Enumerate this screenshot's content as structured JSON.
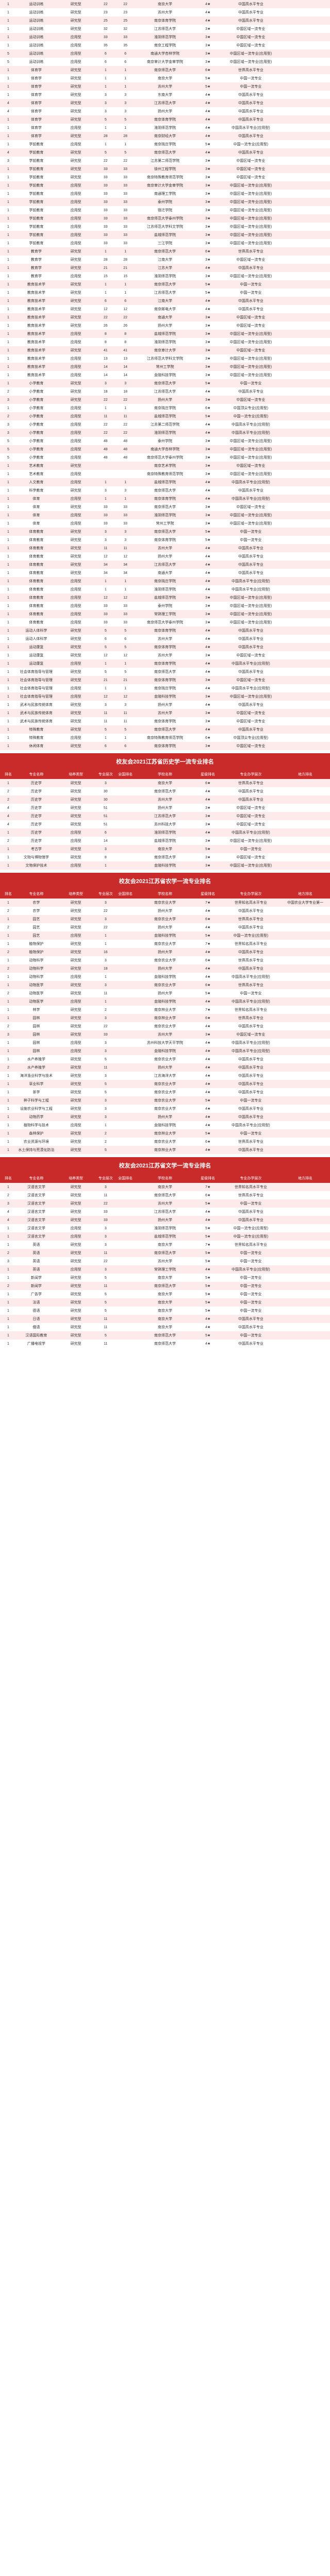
{
  "columns": [
    "排名",
    "专业名称",
    "培养类型",
    "专业层次",
    "全国排名",
    "学校名称",
    "星级排名",
    "专业办学层次",
    "地方排名"
  ],
  "section_titles": [
    "校友会2021江苏省历史学一流专业排名",
    "校友会2021江苏省农学一流专业排名",
    "校友会2021江苏省文学一流专业排名"
  ],
  "table1": [
    [
      1,
      "运动训练",
      "研究型",
      22,
      22,
      "南京大学",
      "4★",
      "中国高水平专业",
      ""
    ],
    [
      1,
      "运动训练",
      "研究型",
      23,
      23,
      "苏州大学",
      "4★",
      "中国高水平专业",
      ""
    ],
    [
      1,
      "运动训练",
      "研究型",
      25,
      25,
      "南京体育学院",
      "4★",
      "中国高水平专业",
      ""
    ],
    [
      1,
      "运动训练",
      "研究型",
      32,
      32,
      "江苏师范大学",
      "3★",
      "中国区域一流专业",
      ""
    ],
    [
      1,
      "运动训练",
      "应用型",
      33,
      33,
      "淮阴师范学院",
      "3★",
      "中国区域一流专业",
      ""
    ],
    [
      1,
      "运动训练",
      "应用型",
      35,
      35,
      "南京工程学院",
      "3★",
      "中国区域一流专业",
      ""
    ],
    [
      5,
      "运动训练",
      "应用型",
      6,
      6,
      "南通大学杏林学院",
      "3★",
      "中国区域一流专业(应用型)",
      ""
    ],
    [
      5,
      "运动训练",
      "应用型",
      6,
      6,
      "南京审计大学金审学院",
      "3★",
      "中国区域一流专业(应用型)",
      ""
    ],
    [
      1,
      "体育学",
      "研究型",
      1,
      1,
      "南京师范大学",
      "6★",
      "世界高水平专业",
      ""
    ],
    [
      1,
      "体育学",
      "研究型",
      1,
      1,
      "南京大学",
      "5★",
      "中国一流专业",
      ""
    ],
    [
      1,
      "体育学",
      "研究型",
      1,
      1,
      "苏州大学",
      "5★",
      "中国一流专业",
      ""
    ],
    [
      1,
      "体育学",
      "研究型",
      3,
      3,
      "东南大学",
      "4★",
      "中国高水平专业",
      ""
    ],
    [
      4,
      "体育学",
      "研究型",
      3,
      3,
      "江苏师范大学",
      "4★",
      "中国高水平专业",
      ""
    ],
    [
      4,
      "体育学",
      "研究型",
      3,
      3,
      "扬州大学",
      "4★",
      "中国高水平专业",
      ""
    ],
    [
      1,
      "体育学",
      "研究型",
      5,
      5,
      "南京体育学院",
      "4★",
      "中国高水平专业",
      ""
    ],
    [
      1,
      "体育学",
      "应用型",
      1,
      1,
      "淮阴师范学院",
      "4★",
      "中国高水平专业(应用型)",
      ""
    ],
    [
      1,
      "体育学",
      "研究型",
      28,
      28,
      "南京财经大学",
      "4★",
      "中国高水平专业",
      ""
    ],
    [
      1,
      "学前教育",
      "应用型",
      1,
      1,
      "南京晓庄学院",
      "5★",
      "中国一流专业(应用型)",
      ""
    ],
    [
      4,
      "学前教育",
      "研究型",
      5,
      5,
      "南京师范大学",
      "4★",
      "中国高水平专业",
      ""
    ],
    [
      3,
      "学前教育",
      "研究型",
      22,
      22,
      "江苏第二师范学院",
      "3★",
      "中国区域一流专业",
      ""
    ],
    [
      1,
      "学前教育",
      "研究型",
      33,
      33,
      "徐州工程学院",
      "3★",
      "中国区域一流专业",
      ""
    ],
    [
      1,
      "学前教育",
      "研究型",
      33,
      33,
      "南京特殊教育师范学院",
      "3★",
      "中国区域一流专业",
      ""
    ],
    [
      1,
      "学前教育",
      "应用型",
      33,
      33,
      "南京审计大学金审学院",
      "3★",
      "中国区域一流专业(应用型)",
      ""
    ],
    [
      1,
      "学前教育",
      "应用型",
      33,
      33,
      "南通理工学院",
      "3★",
      "中国区域一流专业(应用型)",
      ""
    ],
    [
      1,
      "学前教育",
      "应用型",
      33,
      33,
      "泰州学院",
      "3★",
      "中国区域一流专业(应用型)",
      ""
    ],
    [
      1,
      "学前教育",
      "应用型",
      33,
      33,
      "宿迁学院",
      "3★",
      "中国区域一流专业(应用型)",
      ""
    ],
    [
      1,
      "学前教育",
      "应用型",
      33,
      33,
      "南京师范大学泰州学院",
      "3★",
      "中国区域一流专业(应用型)",
      ""
    ],
    [
      1,
      "学前教育",
      "应用型",
      33,
      33,
      "江苏师范大学科文学院",
      "3★",
      "中国区域一流专业(应用型)",
      ""
    ],
    [
      1,
      "学前教育",
      "应用型",
      33,
      33,
      "盐城师范学院",
      "3★",
      "中国区域一流专业(应用型)",
      ""
    ],
    [
      1,
      "学前教育",
      "应用型",
      33,
      33,
      "三江学院",
      "3★",
      "中国区域一流专业(应用型)",
      ""
    ],
    [
      1,
      "教育学",
      "研究型",
      1,
      1,
      "南京师范大学",
      "6★",
      "世界高水平专业",
      ""
    ],
    [
      1,
      "教育学",
      "研究型",
      28,
      28,
      "江南大学",
      "3★",
      "中国区域一流专业",
      ""
    ],
    [
      1,
      "教育学",
      "研究型",
      21,
      21,
      "江苏大学",
      "4★",
      "中国高水平专业",
      ""
    ],
    [
      1,
      "教育学",
      "应用型",
      15,
      15,
      "淮阴师范学院",
      "3★",
      "中国区域一流专业(应用型)",
      ""
    ],
    [
      1,
      "教育技术学",
      "研究型",
      1,
      1,
      "南京师范大学",
      "5★",
      "中国一流专业",
      ""
    ],
    [
      1,
      "教育技术学",
      "研究型",
      1,
      1,
      "江苏师范大学",
      "5★",
      "中国一流专业",
      ""
    ],
    [
      1,
      "教育技术学",
      "研究型",
      6,
      6,
      "江南大学",
      "4★",
      "中国高水平专业",
      ""
    ],
    [
      1,
      "教育技术学",
      "研究型",
      12,
      12,
      "南京邮电大学",
      "4★",
      "中国高水平专业",
      ""
    ],
    [
      1,
      "教育技术学",
      "研究型",
      22,
      22,
      "南通大学",
      "3★",
      "中国区域一流专业",
      ""
    ],
    [
      1,
      "教育技术学",
      "研究型",
      26,
      26,
      "扬州大学",
      "3★",
      "中国区域一流专业",
      ""
    ],
    [
      1,
      "教育技术学",
      "应用型",
      8,
      8,
      "盐城师范学院",
      "3★",
      "中国区域一流专业(应用型)",
      ""
    ],
    [
      1,
      "教育技术学",
      "应用型",
      8,
      8,
      "淮阴师范学院",
      "3★",
      "中国区域一流专业(应用型)",
      ""
    ],
    [
      1,
      "教育技术学",
      "研究型",
      41,
      41,
      "南京审计大学",
      "3★",
      "中国区域一流专业",
      ""
    ],
    [
      1,
      "教育技术学",
      "应用型",
      13,
      13,
      "江苏师范大学科文学院",
      "3★",
      "中国区域一流专业(应用型)",
      ""
    ],
    [
      1,
      "教育技术学",
      "应用型",
      14,
      14,
      "常州工学院",
      "3★",
      "中国区域一流专业(应用型)",
      ""
    ],
    [
      1,
      "教育技术学",
      "应用型",
      14,
      14,
      "金陵科技学院",
      "3★",
      "中国区域一流专业(应用型)",
      ""
    ],
    [
      1,
      "小学教育",
      "研究型",
      3,
      3,
      "南京师范大学",
      "5★",
      "中国一流专业",
      ""
    ],
    [
      2,
      "小学教育",
      "研究型",
      18,
      18,
      "江苏师范大学",
      "4★",
      "中国高水平专业",
      ""
    ],
    [
      3,
      "小学教育",
      "研究型",
      22,
      22,
      "扬州大学",
      "3★",
      "中国区域一流专业",
      ""
    ],
    [
      1,
      "小学教育",
      "应用型",
      1,
      1,
      "南京晓庄学院",
      "6★",
      "中国顶尖专业(应用型)",
      ""
    ],
    [
      2,
      "小学教育",
      "应用型",
      11,
      11,
      "盐城师范学院",
      "5★",
      "中国一流专业(应用型)",
      ""
    ],
    [
      3,
      "小学教育",
      "应用型",
      22,
      22,
      "江苏第二师范学院",
      "4★",
      "中国高水平专业(应用型)",
      ""
    ],
    [
      3,
      "小学教育",
      "应用型",
      22,
      22,
      "淮阴师范学院",
      "4★",
      "中国高水平专业(应用型)",
      ""
    ],
    [
      5,
      "小学教育",
      "应用型",
      48,
      48,
      "泰州学院",
      "3★",
      "中国区域一流专业(应用型)",
      ""
    ],
    [
      5,
      "小学教育",
      "应用型",
      48,
      48,
      "南通大学杏林学院",
      "3★",
      "中国区域一流专业(应用型)",
      ""
    ],
    [
      5,
      "小学教育",
      "应用型",
      48,
      48,
      "南京师范大学泰州学院",
      "3★",
      "中国区域一流专业(应用型)",
      ""
    ],
    [
      1,
      "艺术教育",
      "研究型",
      "",
      "",
      "南京艺术学院",
      "3★",
      "中国区域一流专业",
      ""
    ],
    [
      1,
      "艺术教育",
      "应用型",
      "",
      "",
      "南京特殊教育师范学院",
      "3★",
      "中国区域一流专业(应用型)",
      ""
    ],
    [
      1,
      "人文教育",
      "应用型",
      1,
      1,
      "盐城师范学院",
      "4★",
      "中国高水平专业(应用型)",
      ""
    ],
    [
      1,
      "科学教育",
      "研究型",
      3,
      3,
      "南京师范大学",
      "4★",
      "中国高水平专业",
      ""
    ],
    [
      1,
      "体育",
      "应用型",
      1,
      1,
      "南京体育学院",
      "4★",
      "中国高水平专业(应用型)",
      ""
    ],
    [
      1,
      "体育",
      "研究型",
      33,
      33,
      "南京师范大学",
      "3★",
      "中国区域一流专业",
      ""
    ],
    [
      1,
      "体育",
      "应用型",
      33,
      33,
      "淮阴师范学院",
      "3★",
      "中国区域一流专业(应用型)",
      ""
    ],
    [
      1,
      "体育",
      "应用型",
      33,
      33,
      "常州工学院",
      "3★",
      "中国区域一流专业(应用型)",
      ""
    ],
    [
      1,
      "体育教育",
      "研究型",
      3,
      3,
      "南京师范大学",
      "5★",
      "中国一流专业",
      ""
    ],
    [
      1,
      "体育教育",
      "研究型",
      3,
      3,
      "南京体育学院",
      "5★",
      "中国一流专业",
      ""
    ],
    [
      1,
      "体育教育",
      "研究型",
      11,
      11,
      "苏州大学",
      "4★",
      "中国高水平专业",
      ""
    ],
    [
      1,
      "体育教育",
      "研究型",
      12,
      12,
      "扬州大学",
      "4★",
      "中国高水平专业",
      ""
    ],
    [
      1,
      "体育教育",
      "研究型",
      34,
      34,
      "江苏师范大学",
      "4★",
      "中国高水平专业",
      ""
    ],
    [
      1,
      "体育教育",
      "研究型",
      34,
      34,
      "南通大学",
      "4★",
      "中国高水平专业",
      ""
    ],
    [
      1,
      "体育教育",
      "应用型",
      1,
      1,
      "南京晓庄学院",
      "4★",
      "中国高水平专业(应用型)",
      ""
    ],
    [
      1,
      "体育教育",
      "应用型",
      1,
      1,
      "淮阴师范学院",
      "4★",
      "中国高水平专业(应用型)",
      ""
    ],
    [
      1,
      "体育教育",
      "应用型",
      12,
      12,
      "盐城师范学院",
      "3★",
      "中国区域一流专业(应用型)",
      ""
    ],
    [
      1,
      "体育教育",
      "应用型",
      33,
      33,
      "泰州学院",
      "3★",
      "中国区域一流专业(应用型)",
      ""
    ],
    [
      1,
      "体育教育",
      "应用型",
      33,
      33,
      "常熟理工学院",
      "3★",
      "中国区域一流专业(应用型)",
      ""
    ],
    [
      1,
      "体育教育",
      "应用型",
      33,
      33,
      "南京师范大学泰州学院",
      "3★",
      "中国区域一流专业(应用型)",
      ""
    ],
    [
      1,
      "运动人体科学",
      "研究型",
      5,
      5,
      "南京体育学院",
      "4★",
      "中国高水平专业",
      ""
    ],
    [
      1,
      "运动人体科学",
      "研究型",
      6,
      6,
      "苏州大学",
      "4★",
      "中国高水平专业",
      ""
    ],
    [
      1,
      "运动康复",
      "研究型",
      5,
      5,
      "南京体育学院",
      "4★",
      "中国高水平专业",
      ""
    ],
    [
      1,
      "运动康复",
      "研究型",
      12,
      12,
      "苏州大学",
      "3★",
      "中国区域一流专业",
      ""
    ],
    [
      1,
      "运动康复",
      "应用型",
      1,
      1,
      "南京体育学院",
      "4★",
      "中国高水平专业(应用型)",
      ""
    ],
    [
      1,
      "社会体育指导与管理",
      "研究型",
      5,
      5,
      "南京师范大学",
      "4★",
      "中国高水平专业",
      ""
    ],
    [
      1,
      "社会体育指导与管理",
      "研究型",
      21,
      21,
      "南京体育学院",
      "3★",
      "中国区域一流专业",
      ""
    ],
    [
      1,
      "社会体育指导与管理",
      "应用型",
      1,
      1,
      "南京晓庄学院",
      "4★",
      "中国高水平专业(应用型)",
      ""
    ],
    [
      1,
      "社会体育指导与管理",
      "应用型",
      12,
      12,
      "金陵科技学院",
      "3★",
      "中国区域一流专业(应用型)",
      ""
    ],
    [
      1,
      "武术与民族传统体育",
      "研究型",
      3,
      3,
      "扬州大学",
      "4★",
      "中国高水平专业",
      ""
    ],
    [
      1,
      "武术与民族传统体育",
      "研究型",
      11,
      11,
      "苏州大学",
      "3★",
      "中国区域一流专业",
      ""
    ],
    [
      1,
      "武术与民族传统体育",
      "研究型",
      11,
      11,
      "南京体育学院",
      "3★",
      "中国区域一流专业",
      ""
    ],
    [
      1,
      "特殊教育",
      "研究型",
      5,
      5,
      "南京师范大学",
      "4★",
      "中国高水平专业",
      ""
    ],
    [
      1,
      "特殊教育",
      "应用型",
      1,
      1,
      "南京特殊教育师范学院",
      "6★",
      "中国顶尖专业(应用型)",
      ""
    ],
    [
      1,
      "休闲体育",
      "研究型",
      6,
      6,
      "南京体育学院",
      "3★",
      "中国区域一流专业",
      ""
    ]
  ],
  "table2": [
    [
      1,
      "历史学",
      "研究型",
      3,
      "",
      "南京大学",
      "6★",
      "世界高水平专业",
      ""
    ],
    [
      2,
      "历史学",
      "研究型",
      30,
      "",
      "南京师范大学",
      "4★",
      "中国高水平专业",
      ""
    ],
    [
      2,
      "历史学",
      "研究型",
      30,
      "",
      "苏州大学",
      "4★",
      "中国高水平专业",
      ""
    ],
    [
      4,
      "历史学",
      "研究型",
      51,
      "",
      "扬州大学",
      "3★",
      "中国区域一流专业",
      ""
    ],
    [
      4,
      "历史学",
      "研究型",
      51,
      "",
      "江苏师范大学",
      "3★",
      "中国区域一流专业",
      ""
    ],
    [
      4,
      "历史学",
      "研究型",
      51,
      "",
      "苏州科技大学",
      "3★",
      "中国区域一流专业",
      ""
    ],
    [
      1,
      "历史学",
      "应用型",
      6,
      "",
      "淮阴师范学院",
      "4★",
      "中国高水平专业(应用型)",
      ""
    ],
    [
      2,
      "历史学",
      "应用型",
      14,
      "",
      "盐城师范学院",
      "3★",
      "中国区域一流专业(应用型)",
      ""
    ],
    [
      1,
      "考古学",
      "研究型",
      3,
      "",
      "南京大学",
      "5★",
      "中国一流专业",
      ""
    ],
    [
      1,
      "文物与博物馆学",
      "研究型",
      8,
      "",
      "南京师范大学",
      "3★",
      "中国区域一流专业",
      ""
    ],
    [
      1,
      "文物保护技术",
      "应用型",
      1,
      "",
      "金陵科技学院",
      "3★",
      "中国区域一流专业(应用型)",
      ""
    ]
  ],
  "table3": [
    [
      1,
      "农学",
      "研究型",
      3,
      "",
      "南京农业大学",
      "7★",
      "世界知名高水平专业",
      "中国农业大学专业第一"
    ],
    [
      2,
      "农学",
      "研究型",
      22,
      "",
      "扬州大学",
      "4★",
      "中国高水平专业",
      ""
    ],
    [
      1,
      "园艺",
      "研究型",
      3,
      "",
      "南京农业大学",
      "6★",
      "世界高水平专业",
      ""
    ],
    [
      2,
      "园艺",
      "研究型",
      22,
      "",
      "扬州大学",
      "4★",
      "中国高水平专业",
      ""
    ],
    [
      1,
      "园艺",
      "应用型",
      1,
      "",
      "金陵科技学院",
      "5★",
      "中国一流专业(应用型)",
      ""
    ],
    [
      1,
      "植物保护",
      "研究型",
      1,
      "",
      "南京农业大学",
      "7★",
      "世界知名高水平专业",
      ""
    ],
    [
      2,
      "植物保护",
      "研究型",
      16,
      "",
      "扬州大学",
      "4★",
      "中国高水平专业",
      ""
    ],
    [
      1,
      "动物科学",
      "研究型",
      3,
      "",
      "南京农业大学",
      "6★",
      "世界高水平专业",
      ""
    ],
    [
      2,
      "动物科学",
      "研究型",
      18,
      "",
      "扬州大学",
      "4★",
      "中国高水平专业",
      ""
    ],
    [
      1,
      "动物科学",
      "应用型",
      1,
      "",
      "金陵科技学院",
      "4★",
      "中国高水平专业(应用型)",
      ""
    ],
    [
      1,
      "动物医学",
      "研究型",
      3,
      "",
      "南京农业大学",
      "6★",
      "世界高水平专业",
      ""
    ],
    [
      2,
      "动物医学",
      "研究型",
      11,
      "",
      "扬州大学",
      "5★",
      "中国一流专业",
      ""
    ],
    [
      1,
      "动物医学",
      "应用型",
      1,
      "",
      "金陵科技学院",
      "4★",
      "中国高水平专业(应用型)",
      ""
    ],
    [
      1,
      "林学",
      "研究型",
      2,
      "",
      "南京林业大学",
      "7★",
      "世界知名高水平专业",
      ""
    ],
    [
      1,
      "园林",
      "研究型",
      3,
      "",
      "南京林业大学",
      "6★",
      "世界高水平专业",
      ""
    ],
    [
      2,
      "园林",
      "研究型",
      22,
      "",
      "南京农业大学",
      "4★",
      "中国高水平专业",
      ""
    ],
    [
      3,
      "园林",
      "研究型",
      33,
      "",
      "苏州大学",
      "3★",
      "中国区域一流专业",
      ""
    ],
    [
      1,
      "园林",
      "应用型",
      3,
      "",
      "苏州科技大学天平学院",
      "4★",
      "中国高水平专业(应用型)",
      ""
    ],
    [
      1,
      "园林",
      "应用型",
      3,
      "",
      "金陵科技学院",
      "4★",
      "中国高水平专业(应用型)",
      ""
    ],
    [
      1,
      "水产养殖学",
      "研究型",
      5,
      "",
      "南京农业大学",
      "4★",
      "中国高水平专业",
      ""
    ],
    [
      2,
      "水产养殖学",
      "研究型",
      11,
      "",
      "扬州大学",
      "4★",
      "中国高水平专业",
      ""
    ],
    [
      1,
      "海洋渔业科学与技术",
      "研究型",
      3,
      "",
      "江苏海洋大学",
      "4★",
      "中国高水平专业",
      ""
    ],
    [
      1,
      "草业科学",
      "研究型",
      5,
      "",
      "南京农业大学",
      "4★",
      "中国高水平专业",
      ""
    ],
    [
      1,
      "茶学",
      "研究型",
      5,
      "",
      "南京农业大学",
      "4★",
      "中国高水平专业",
      ""
    ],
    [
      1,
      "种子科学与工程",
      "研究型",
      3,
      "",
      "南京农业大学",
      "5★",
      "中国一流专业",
      ""
    ],
    [
      1,
      "设施农业科学与工程",
      "研究型",
      3,
      "",
      "南京农业大学",
      "4★",
      "中国高水平专业",
      ""
    ],
    [
      1,
      "动物药学",
      "研究型",
      3,
      "",
      "扬州大学",
      "4★",
      "中国高水平专业",
      ""
    ],
    [
      1,
      "植物科学与技术",
      "应用型",
      1,
      "",
      "金陵科技学院",
      "4★",
      "中国高水平专业(应用型)",
      ""
    ],
    [
      1,
      "森林保护",
      "研究型",
      2,
      "",
      "南京林业大学",
      "5★",
      "中国一流专业",
      ""
    ],
    [
      1,
      "农业资源与环境",
      "研究型",
      2,
      "",
      "南京农业大学",
      "6★",
      "世界高水平专业",
      ""
    ],
    [
      1,
      "水土保持与荒漠化防治",
      "研究型",
      5,
      "",
      "南京林业大学",
      "4★",
      "中国高水平专业",
      ""
    ]
  ],
  "table4": [
    [
      1,
      "汉语言文学",
      "研究型",
      3,
      "",
      "南京大学",
      "7★",
      "世界知名高水平专业",
      ""
    ],
    [
      2,
      "汉语言文学",
      "研究型",
      11,
      "",
      "南京师范大学",
      "6★",
      "世界高水平专业",
      ""
    ],
    [
      3,
      "汉语言文学",
      "研究型",
      22,
      "",
      "苏州大学",
      "5★",
      "中国一流专业",
      ""
    ],
    [
      4,
      "汉语言文学",
      "研究型",
      33,
      "",
      "江苏师范大学",
      "4★",
      "中国高水平专业",
      ""
    ],
    [
      4,
      "汉语言文学",
      "研究型",
      33,
      "",
      "扬州大学",
      "4★",
      "中国高水平专业",
      ""
    ],
    [
      1,
      "汉语言文学",
      "应用型",
      3,
      "",
      "淮阴师范学院",
      "5★",
      "中国一流专业(应用型)",
      ""
    ],
    [
      1,
      "汉语言文学",
      "应用型",
      3,
      "",
      "盐城师范学院",
      "5★",
      "中国一流专业(应用型)",
      ""
    ],
    [
      1,
      "英语",
      "研究型",
      3,
      "",
      "南京大学",
      "7★",
      "世界知名高水平专业",
      ""
    ],
    [
      2,
      "英语",
      "研究型",
      11,
      "",
      "南京师范大学",
      "5★",
      "中国一流专业",
      ""
    ],
    [
      3,
      "英语",
      "研究型",
      22,
      "",
      "苏州大学",
      "5★",
      "中国一流专业",
      ""
    ],
    [
      1,
      "英语",
      "应用型",
      3,
      "",
      "常熟理工学院",
      "4★",
      "中国高水平专业(应用型)",
      ""
    ],
    [
      1,
      "新闻学",
      "研究型",
      5,
      "",
      "南京大学",
      "5★",
      "中国一流专业",
      ""
    ],
    [
      2,
      "新闻学",
      "研究型",
      11,
      "",
      "南京师范大学",
      "5★",
      "中国一流专业",
      ""
    ],
    [
      1,
      "广告学",
      "研究型",
      5,
      "",
      "南京大学",
      "5★",
      "中国一流专业",
      ""
    ],
    [
      1,
      "法语",
      "研究型",
      5,
      "",
      "南京大学",
      "5★",
      "中国一流专业",
      ""
    ],
    [
      1,
      "德语",
      "研究型",
      5,
      "",
      "南京大学",
      "5★",
      "中国一流专业",
      ""
    ],
    [
      1,
      "日语",
      "研究型",
      11,
      "",
      "南京大学",
      "4★",
      "中国高水平专业",
      ""
    ],
    [
      1,
      "俄语",
      "研究型",
      11,
      "",
      "南京大学",
      "4★",
      "中国高水平专业",
      ""
    ],
    [
      1,
      "汉语国际教育",
      "研究型",
      5,
      "",
      "南京师范大学",
      "5★",
      "中国一流专业",
      ""
    ],
    [
      1,
      "广播电视学",
      "研究型",
      11,
      "",
      "南京师范大学",
      "4★",
      "中国高水平专业",
      ""
    ]
  ]
}
